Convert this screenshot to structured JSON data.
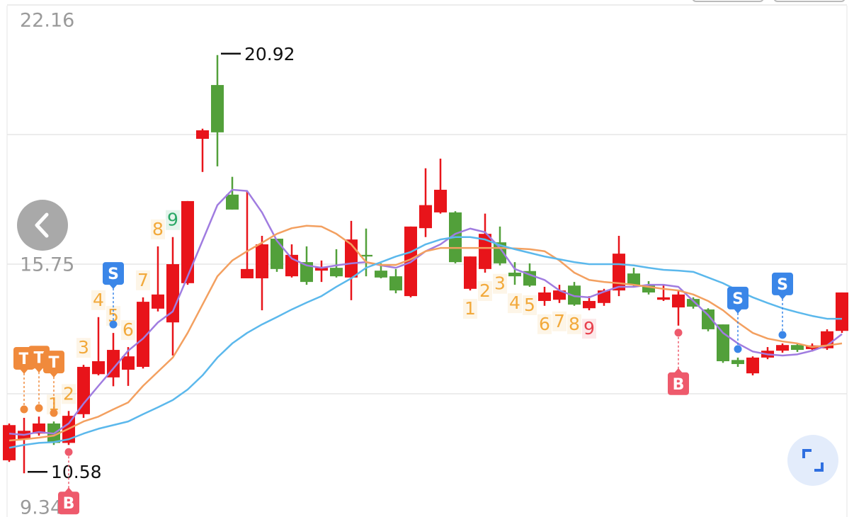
{
  "chart_data": {
    "type": "candlestick",
    "ylim": [
      9.34,
      22.16
    ],
    "yticks": [
      22.16,
      {
        "value": 18.955,
        "label": null
      },
      15.75,
      {
        "value": 12.545,
        "label": null
      },
      9.34
    ],
    "grid": true,
    "up_color": "#e8141a",
    "down_color": "#52a03a",
    "open": [
      10.9,
      11.42,
      11.56,
      11.81,
      11.33,
      12.04,
      13.03,
      12.95,
      13.14,
      13.21,
      14.65,
      14.31,
      15.28,
      18.85,
      20.18,
      17.47,
      15.4,
      15.4,
      16.38,
      15.45,
      15.8,
      15.59,
      15.66,
      15.42,
      15.98,
      15.59,
      15.45,
      14.96,
      16.64,
      17.03,
      17.03,
      15.14,
      15.63,
      16.29,
      15.54,
      15.58,
      14.84,
      14.87,
      15.22,
      14.66,
      14.79,
      15.1,
      15.52,
      15.24,
      14.87,
      14.68,
      14.89,
      14.63,
      14.26,
      13.38,
      13.05,
      13.44,
      13.61,
      13.75,
      13.65,
      13.67,
      14.1
    ],
    "high": [
      11.81,
      11.95,
      11.98,
      11.86,
      12.12,
      13.26,
      14.44,
      14.05,
      13.7,
      14.93,
      16.19,
      16.42,
      17.31,
      19.1,
      20.92,
      17.91,
      17.56,
      16.45,
      16.38,
      16.24,
      16.19,
      15.84,
      16.12,
      16.82,
      16.63,
      15.77,
      15.63,
      16.68,
      18.12,
      18.36,
      17.06,
      15.94,
      17.0,
      16.68,
      15.8,
      15.77,
      15.19,
      15.24,
      15.31,
      14.96,
      15.14,
      16.45,
      15.66,
      15.33,
      15.24,
      15.1,
      14.93,
      14.66,
      14.26,
      13.44,
      13.47,
      13.7,
      13.79,
      13.79,
      13.79,
      14.14,
      15.05
    ],
    "low": [
      10.86,
      10.58,
      11.51,
      11.28,
      11.28,
      11.95,
      13.0,
      12.73,
      12.74,
      13.17,
      14.58,
      13.49,
      15.24,
      18.03,
      18.17,
      17.1,
      15.4,
      14.61,
      15.56,
      15.42,
      15.24,
      15.31,
      15.42,
      14.86,
      15.45,
      15.4,
      15.03,
      14.93,
      16.42,
      17.0,
      15.77,
      15.1,
      15.54,
      15.72,
      15.24,
      15.19,
      14.72,
      14.79,
      14.72,
      14.61,
      14.72,
      14.96,
      15.19,
      15.0,
      14.84,
      14.23,
      14.65,
      14.09,
      13.31,
      13.21,
      13.0,
      13.4,
      13.56,
      13.58,
      13.59,
      13.63,
      14.05
    ],
    "close": [
      11.77,
      11.63,
      11.81,
      11.33,
      12.0,
      13.21,
      13.35,
      13.63,
      13.47,
      14.82,
      15.0,
      15.75,
      17.31,
      19.06,
      19.01,
      17.1,
      15.63,
      16.24,
      15.63,
      15.98,
      15.31,
      15.66,
      15.45,
      16.36,
      15.94,
      15.42,
      15.1,
      16.68,
      17.21,
      17.59,
      15.8,
      15.94,
      16.5,
      15.77,
      15.45,
      15.22,
      15.05,
      15.1,
      14.75,
      14.84,
      15.1,
      16.01,
      15.24,
      15.05,
      14.93,
      15.0,
      14.7,
      14.14,
      13.35,
      13.28,
      13.44,
      13.61,
      13.75,
      13.63,
      13.74,
      14.09,
      15.05
    ],
    "series": [
      {
        "color": "#a07ce0",
        "values": [
          11.56,
          11.53,
          11.6,
          11.56,
          11.81,
          12.3,
          12.74,
          13.17,
          13.61,
          13.91,
          14.31,
          14.58,
          15.45,
          16.33,
          17.21,
          17.59,
          17.56,
          17.03,
          16.33,
          15.89,
          15.72,
          15.66,
          15.72,
          15.77,
          15.8,
          15.72,
          15.66,
          15.8,
          16.07,
          16.24,
          16.5,
          16.63,
          16.54,
          16.15,
          15.63,
          15.49,
          15.36,
          15.1,
          14.96,
          14.93,
          15.07,
          15.19,
          15.19,
          15.24,
          15.24,
          15.19,
          14.84,
          14.49,
          14.05,
          13.79,
          13.59,
          13.52,
          13.49,
          13.52,
          13.61,
          13.74,
          14.02
        ]
      },
      {
        "color": "#f3a060",
        "values": [
          11.39,
          11.42,
          11.46,
          11.51,
          11.68,
          11.86,
          11.98,
          12.16,
          12.33,
          12.74,
          13.09,
          13.44,
          14.05,
          14.75,
          15.45,
          15.84,
          16.07,
          16.28,
          16.5,
          16.64,
          16.7,
          16.68,
          16.5,
          16.24,
          15.8,
          15.73,
          15.73,
          15.87,
          16.07,
          16.15,
          16.15,
          16.15,
          16.15,
          16.15,
          16.14,
          16.12,
          16.07,
          15.84,
          15.54,
          15.36,
          15.31,
          15.28,
          15.24,
          15.19,
          15.14,
          15.1,
          15.0,
          14.84,
          14.61,
          14.31,
          14.05,
          13.91,
          13.84,
          13.79,
          13.7,
          13.74,
          13.79
        ]
      },
      {
        "color": "#5bb8ec",
        "values": [
          11.21,
          11.28,
          11.33,
          11.35,
          11.42,
          11.56,
          11.68,
          11.77,
          11.86,
          12.04,
          12.21,
          12.39,
          12.65,
          13.0,
          13.44,
          13.79,
          14.05,
          14.26,
          14.44,
          14.63,
          14.8,
          14.96,
          15.19,
          15.4,
          15.66,
          15.8,
          15.94,
          16.05,
          16.24,
          16.36,
          16.42,
          16.42,
          16.36,
          16.22,
          16.12,
          16.03,
          15.94,
          15.87,
          15.8,
          15.75,
          15.75,
          15.75,
          15.72,
          15.66,
          15.61,
          15.59,
          15.56,
          15.42,
          15.28,
          15.1,
          14.93,
          14.79,
          14.66,
          14.56,
          14.47,
          14.4,
          14.4
        ]
      }
    ],
    "annotations": [
      {
        "value": 20.92,
        "index": 14
      },
      {
        "value": 10.58,
        "index": 1
      }
    ],
    "signals": [
      {
        "label": "T",
        "index": 1,
        "color": "#f08a3c",
        "position": "above"
      },
      {
        "label": "T",
        "index": 2,
        "color": "#f08a3c",
        "position": "above"
      },
      {
        "label": "T",
        "index": 3,
        "color": "#f08a3c",
        "position": "above"
      },
      {
        "label": "S",
        "index": 7,
        "color": "#3a86e8",
        "position": "above"
      },
      {
        "label": "S",
        "index": 49,
        "color": "#3a86e8",
        "position": "above"
      },
      {
        "label": "S",
        "index": 52,
        "color": "#3a86e8",
        "position": "above"
      },
      {
        "label": "B",
        "index": 4,
        "color": "#ee5a6c",
        "position": "below"
      },
      {
        "label": "B",
        "index": 45,
        "color": "#ee5a6c",
        "position": "below"
      }
    ],
    "sequences": [
      {
        "start": 3,
        "counts": [
          1,
          2,
          3,
          4,
          5,
          6,
          7,
          8,
          9
        ],
        "position": "above",
        "color": "#f2a93b",
        "final_color": "#2aa866"
      },
      {
        "start": 31,
        "counts": [
          1,
          2,
          3,
          4,
          5,
          6,
          7,
          8,
          9
        ],
        "position": "below",
        "color": "#f2a93b",
        "final_color": "#e8404c"
      }
    ]
  }
}
